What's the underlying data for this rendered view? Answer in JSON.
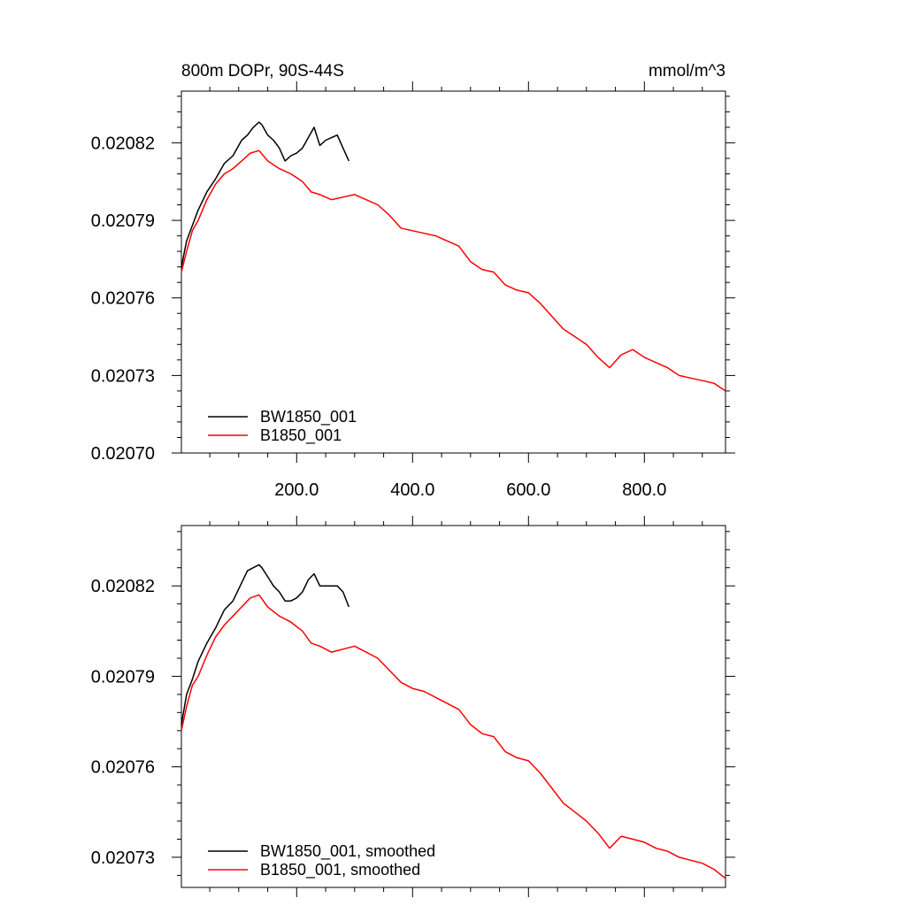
{
  "colors": {
    "black_series": "#000000",
    "red_series": "#ff0000",
    "background": "#ffffff"
  },
  "chart_data": [
    {
      "type": "line",
      "title": "800m DOPr, 90S-44S",
      "units": "mmol/m^3",
      "xlim": [
        1,
        940
      ],
      "ylim": [
        0.0207,
        0.02084
      ],
      "x_ticks": [
        200,
        400,
        600,
        800
      ],
      "x_tick_labels": [
        "200.0",
        "400.0",
        "600.0",
        "800.0"
      ],
      "y_ticks": [
        0.0207,
        0.02073,
        0.02076,
        0.02079,
        0.02082
      ],
      "y_tick_labels": [
        "0.02070",
        "0.02073",
        "0.02076",
        "0.02079",
        "0.02082"
      ],
      "grid": false,
      "legend_position": "bottom-left",
      "series": [
        {
          "name": "BW1850_001",
          "color": "#000000",
          "x": [
            1,
            10,
            20,
            30,
            45,
            60,
            75,
            90,
            105,
            115,
            125,
            135,
            140,
            150,
            160,
            170,
            180,
            190,
            200,
            210,
            220,
            230,
            240,
            250,
            260,
            270,
            280,
            290
          ],
          "y": [
            0.020772,
            0.020782,
            0.020788,
            0.020794,
            0.020801,
            0.020806,
            0.020812,
            0.020815,
            0.020821,
            0.020823,
            0.020826,
            0.020828,
            0.020827,
            0.020823,
            0.020821,
            0.020818,
            0.020813,
            0.020815,
            0.020816,
            0.020818,
            0.020822,
            0.020826,
            0.020819,
            0.020821,
            0.020822,
            0.020823,
            0.020818,
            0.020813
          ]
        },
        {
          "name": "B1850_001",
          "color": "#ff0000",
          "x": [
            1,
            10,
            20,
            30,
            45,
            60,
            75,
            90,
            105,
            120,
            135,
            150,
            170,
            190,
            210,
            225,
            240,
            260,
            280,
            300,
            320,
            340,
            360,
            380,
            400,
            420,
            440,
            460,
            480,
            500,
            520,
            540,
            560,
            580,
            600,
            620,
            640,
            660,
            680,
            700,
            720,
            740,
            760,
            780,
            800,
            820,
            840,
            860,
            880,
            900,
            920,
            940
          ],
          "y": [
            0.02077,
            0.020778,
            0.020786,
            0.02079,
            0.020798,
            0.020804,
            0.020808,
            0.02081,
            0.020813,
            0.020816,
            0.020817,
            0.020813,
            0.02081,
            0.020808,
            0.020805,
            0.020801,
            0.0208,
            0.020798,
            0.020799,
            0.0208,
            0.020798,
            0.020796,
            0.020792,
            0.020787,
            0.020786,
            0.020785,
            0.020784,
            0.020782,
            0.02078,
            0.020774,
            0.020771,
            0.02077,
            0.020765,
            0.020763,
            0.020762,
            0.020758,
            0.020753,
            0.020748,
            0.020745,
            0.020742,
            0.020737,
            0.020733,
            0.020738,
            0.02074,
            0.020737,
            0.020735,
            0.020733,
            0.02073,
            0.020729,
            0.020728,
            0.020727,
            0.020724
          ]
        }
      ]
    },
    {
      "type": "line",
      "title": "",
      "units": "",
      "xlim": [
        1,
        940
      ],
      "ylim": [
        0.02072,
        0.02084
      ],
      "x_ticks": [
        200,
        400,
        600,
        800
      ],
      "x_tick_labels": [],
      "y_ticks": [
        0.02073,
        0.02076,
        0.02079,
        0.02082
      ],
      "y_tick_labels": [
        "0.02073",
        "0.02076",
        "0.02079",
        "0.02082"
      ],
      "grid": false,
      "legend_position": "bottom-left",
      "series": [
        {
          "name": "BW1850_001, smoothed",
          "color": "#000000",
          "x": [
            1,
            10,
            20,
            30,
            45,
            60,
            75,
            90,
            105,
            115,
            125,
            135,
            140,
            150,
            160,
            170,
            180,
            190,
            200,
            210,
            220,
            230,
            240,
            250,
            260,
            270,
            280,
            290
          ],
          "y": [
            0.020774,
            0.020784,
            0.020789,
            0.020795,
            0.020801,
            0.020806,
            0.020812,
            0.020815,
            0.020821,
            0.020825,
            0.020826,
            0.020827,
            0.020826,
            0.020823,
            0.02082,
            0.020818,
            0.020815,
            0.020815,
            0.020816,
            0.020818,
            0.020822,
            0.020824,
            0.02082,
            0.02082,
            0.02082,
            0.02082,
            0.020818,
            0.020813
          ]
        },
        {
          "name": "B1850_001, smoothed",
          "color": "#ff0000",
          "x": [
            1,
            10,
            20,
            30,
            45,
            60,
            75,
            90,
            105,
            120,
            135,
            150,
            170,
            190,
            210,
            225,
            240,
            260,
            280,
            300,
            320,
            340,
            360,
            380,
            400,
            420,
            440,
            460,
            480,
            500,
            520,
            540,
            560,
            580,
            600,
            620,
            640,
            660,
            680,
            700,
            720,
            740,
            760,
            780,
            800,
            820,
            840,
            860,
            880,
            900,
            920,
            940
          ],
          "y": [
            0.020772,
            0.02078,
            0.020787,
            0.02079,
            0.020797,
            0.020803,
            0.020807,
            0.02081,
            0.020813,
            0.020816,
            0.020817,
            0.020813,
            0.02081,
            0.020808,
            0.020805,
            0.020801,
            0.0208,
            0.020798,
            0.020799,
            0.0208,
            0.020798,
            0.020796,
            0.020792,
            0.020788,
            0.020786,
            0.020785,
            0.020783,
            0.020781,
            0.020779,
            0.020774,
            0.020771,
            0.02077,
            0.020765,
            0.020763,
            0.020762,
            0.020758,
            0.020753,
            0.020748,
            0.020745,
            0.020742,
            0.020738,
            0.020733,
            0.020737,
            0.020736,
            0.020735,
            0.020733,
            0.020732,
            0.02073,
            0.020729,
            0.020728,
            0.020726,
            0.020723
          ]
        }
      ]
    }
  ]
}
